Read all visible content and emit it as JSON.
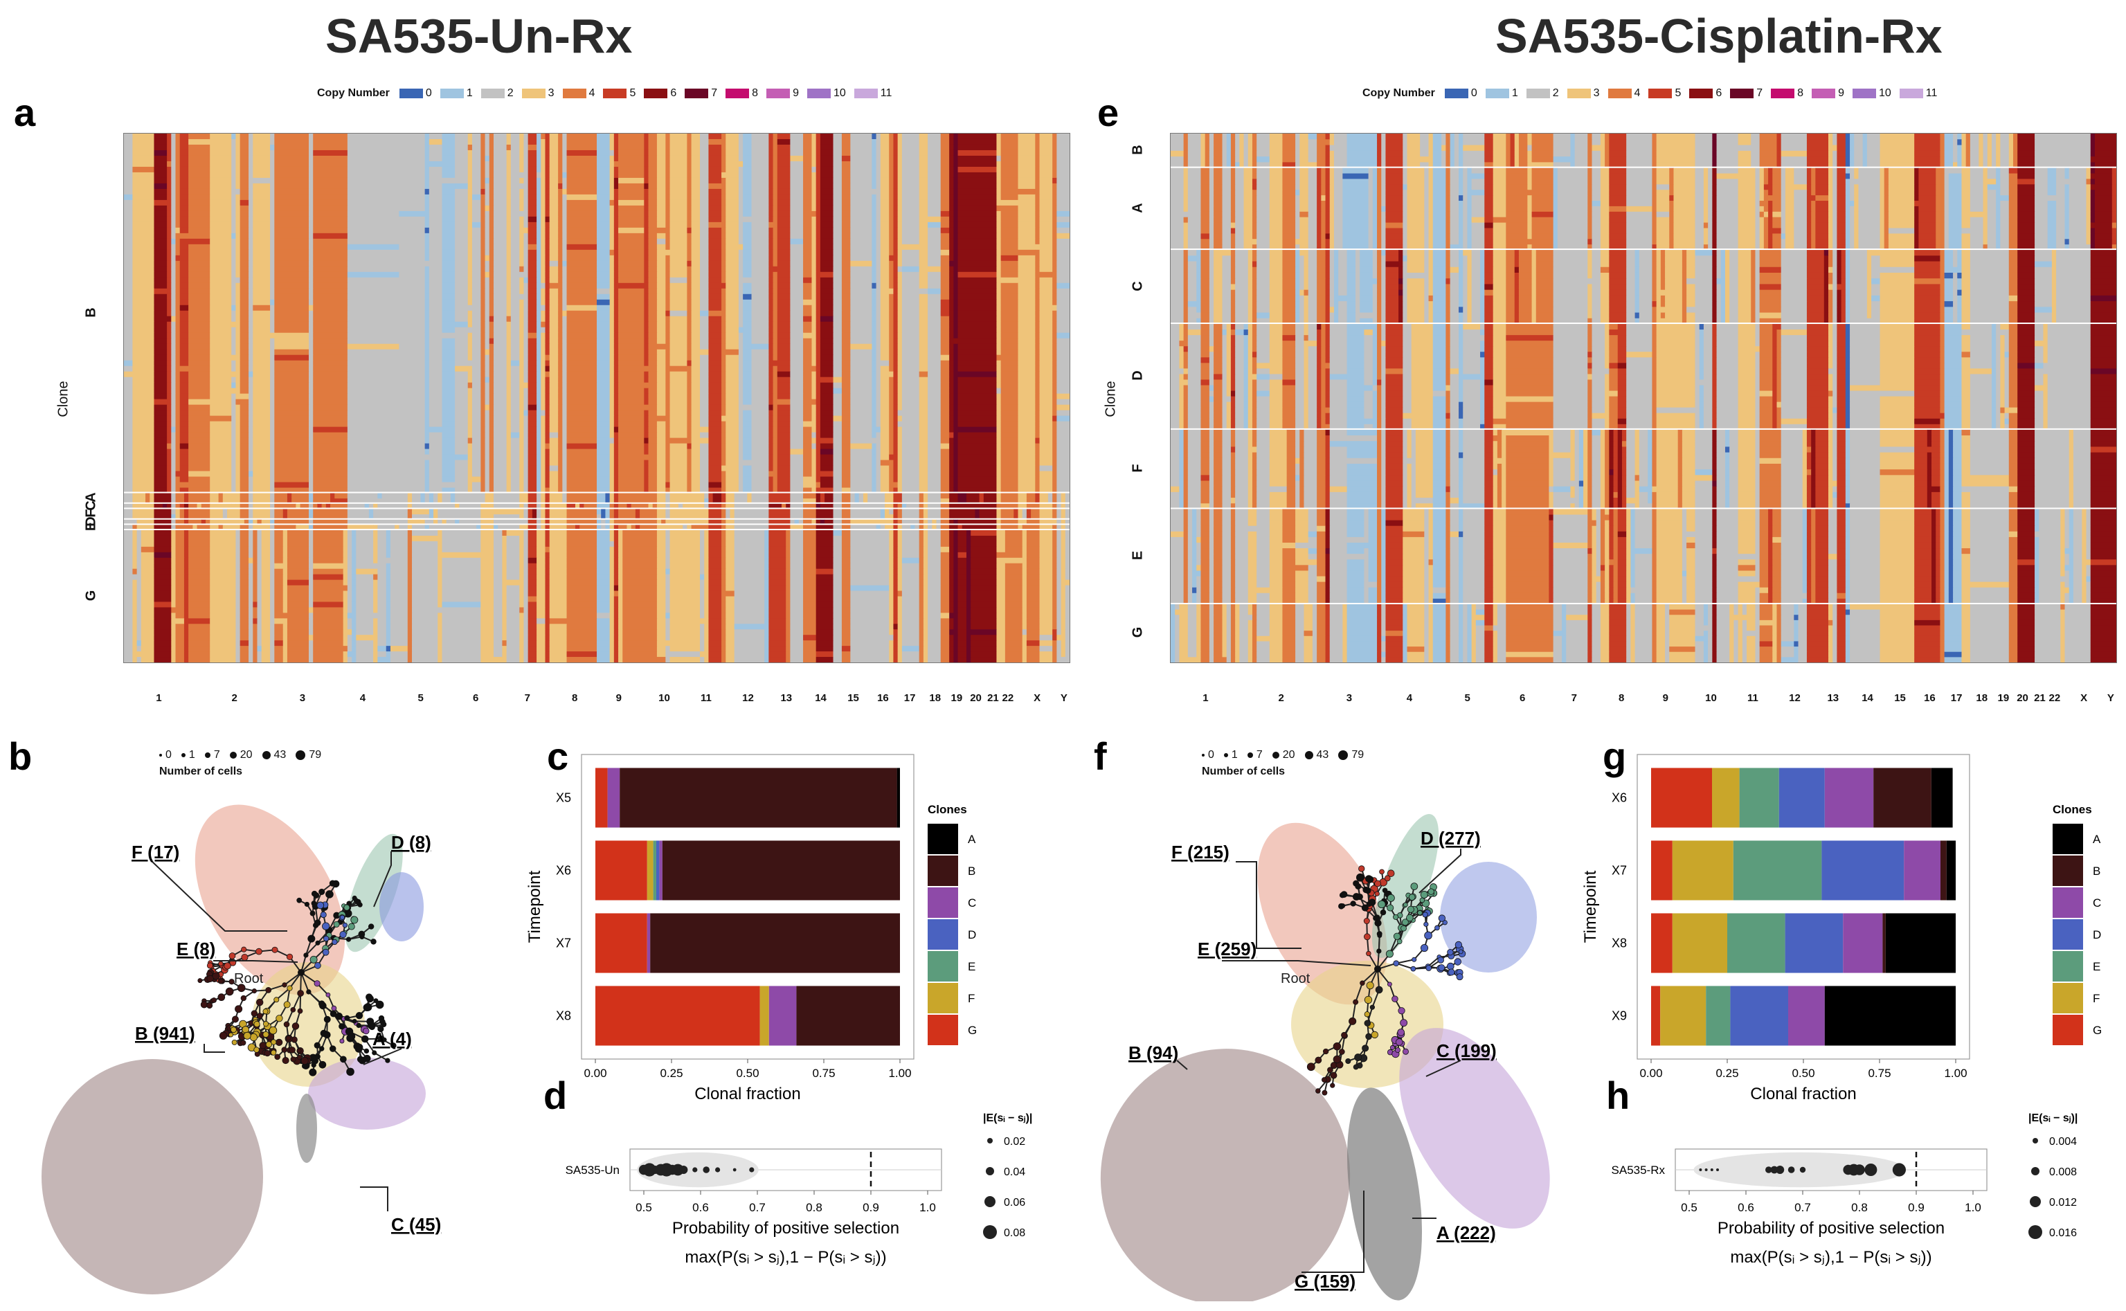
{
  "titles": {
    "left": "SA535-Un-Rx",
    "right": "SA535-Cisplatin-Rx"
  },
  "panel_labels": [
    "a",
    "b",
    "c",
    "d",
    "e",
    "f",
    "g",
    "h"
  ],
  "copy_number_legend": {
    "title": "Copy Number",
    "levels": [
      {
        "label": "0",
        "color": "#3a66b4"
      },
      {
        "label": "1",
        "color": "#9fc4e0"
      },
      {
        "label": "2",
        "color": "#c2c2c2"
      },
      {
        "label": "3",
        "color": "#efc47a"
      },
      {
        "label": "4",
        "color": "#e07a3f"
      },
      {
        "label": "5",
        "color": "#c83b24"
      },
      {
        "label": "6",
        "color": "#8a0f12"
      },
      {
        "label": "7",
        "color": "#6a0626"
      },
      {
        "label": "8",
        "color": "#c40c6e"
      },
      {
        "label": "9",
        "color": "#c45eb4"
      },
      {
        "label": "10",
        "color": "#9f73c6"
      },
      {
        "label": "11",
        "color": "#c9a8dc"
      }
    ]
  },
  "chromosomes": [
    "1",
    "2",
    "3",
    "4",
    "5",
    "6",
    "7",
    "8",
    "9",
    "10",
    "11",
    "12",
    "13",
    "14",
    "15",
    "16",
    "17",
    "18",
    "19",
    "20",
    "21",
    "22",
    "X",
    "Y"
  ],
  "heatmap_left": {
    "clone_axis_label": "Clone",
    "clones": [
      {
        "id": "B",
        "frac": 0.68
      },
      {
        "id": "A",
        "frac": 0.02
      },
      {
        "id": "C",
        "frac": 0.01
      },
      {
        "id": "F",
        "frac": 0.02
      },
      {
        "id": "D",
        "frac": 0.01
      },
      {
        "id": "E",
        "frac": 0.01
      },
      {
        "id": "G",
        "frac": 0.25
      }
    ]
  },
  "heatmap_right": {
    "clone_axis_label": "Clone",
    "clones": [
      {
        "id": "B",
        "frac": 0.065
      },
      {
        "id": "A",
        "frac": 0.155
      },
      {
        "id": "C",
        "frac": 0.14
      },
      {
        "id": "D",
        "frac": 0.2
      },
      {
        "id": "F",
        "frac": 0.15
      },
      {
        "id": "E",
        "frac": 0.18
      },
      {
        "id": "G",
        "frac": 0.11
      }
    ]
  },
  "tree_legend": {
    "title": "Number of cells",
    "sizes": [
      "0",
      "1",
      "7",
      "20",
      "43",
      "79"
    ]
  },
  "tree_left": {
    "root_label": "Root",
    "labels": [
      "F (17)",
      "D (8)",
      "E (8)",
      "B (941)",
      "A (4)",
      "C (45)"
    ]
  },
  "tree_right": {
    "root_label": "Root",
    "labels": [
      "F (215)",
      "D (277)",
      "E (259)",
      "B (94)",
      "C (199)",
      "A (222)",
      "G (159)"
    ]
  },
  "clones_legend": {
    "title": "Clones",
    "items": [
      {
        "label": "A",
        "color": "#000000"
      },
      {
        "label": "B",
        "color": "#3d1414"
      },
      {
        "label": "C",
        "color": "#8e4aa8"
      },
      {
        "label": "D",
        "color": "#4a62c0"
      },
      {
        "label": "E",
        "color": "#5c9c7c"
      },
      {
        "label": "F",
        "color": "#c9a62a"
      },
      {
        "label": "G",
        "color": "#d2321a"
      }
    ]
  },
  "chart_data": [
    {
      "type": "bar",
      "panel": "c",
      "orientation": "horizontal-stacked",
      "categories": [
        "X5",
        "X6",
        "X7",
        "X8"
      ],
      "xlabel": "Clonal fraction",
      "ylabel": "Timepoint",
      "xlim": [
        0,
        1
      ],
      "xticks": [
        "0.00",
        "0.25",
        "0.50",
        "0.75",
        "1.00"
      ],
      "legend_title": "Clones",
      "series": [
        {
          "name": "G",
          "values": [
            0.04,
            0.17,
            0.17,
            0.54
          ]
        },
        {
          "name": "F",
          "values": [
            0.0,
            0.02,
            0.0,
            0.03
          ]
        },
        {
          "name": "E",
          "values": [
            0.0,
            0.01,
            0.0,
            0.0
          ]
        },
        {
          "name": "D",
          "values": [
            0.0,
            0.01,
            0.0,
            0.0
          ]
        },
        {
          "name": "C",
          "values": [
            0.04,
            0.01,
            0.01,
            0.09
          ]
        },
        {
          "name": "B",
          "values": [
            0.91,
            0.78,
            0.82,
            0.34
          ]
        },
        {
          "name": "A",
          "values": [
            0.01,
            0.0,
            0.0,
            0.0
          ]
        }
      ]
    },
    {
      "type": "bar",
      "panel": "g",
      "orientation": "horizontal-stacked",
      "categories": [
        "X6",
        "X7",
        "X8",
        "X9"
      ],
      "xlabel": "Clonal fraction",
      "ylabel": "Timepoint",
      "xlim": [
        0,
        1
      ],
      "xticks": [
        "0.00",
        "0.25",
        "0.50",
        "0.75",
        "1.00"
      ],
      "legend_title": "Clones",
      "series": [
        {
          "name": "G",
          "values": [
            0.2,
            0.07,
            0.07,
            0.03
          ]
        },
        {
          "name": "F",
          "values": [
            0.09,
            0.2,
            0.18,
            0.15
          ]
        },
        {
          "name": "E",
          "values": [
            0.13,
            0.29,
            0.19,
            0.08
          ]
        },
        {
          "name": "D",
          "values": [
            0.15,
            0.27,
            0.19,
            0.19
          ]
        },
        {
          "name": "C",
          "values": [
            0.16,
            0.12,
            0.13,
            0.12
          ]
        },
        {
          "name": "B",
          "values": [
            0.19,
            0.02,
            0.01,
            0.0
          ]
        },
        {
          "name": "A",
          "values": [
            0.07,
            0.03,
            0.23,
            0.43
          ]
        }
      ]
    },
    {
      "type": "scatter",
      "panel": "d",
      "categories": [
        "SA535-Un"
      ],
      "xlabel": "Probability of positive selection",
      "xlabel2": "max(P(sᵢ > sⱼ),1 − P(sᵢ > sⱼ))",
      "xlim": [
        0.5,
        1.0
      ],
      "xticks": [
        "0.5",
        "0.6",
        "0.7",
        "0.8",
        "0.9",
        "1.0"
      ],
      "threshold": 0.9,
      "size_legend_title": "|E(sᵢ − sⱼ)|",
      "size_legend": [
        "0.02",
        "0.04",
        "0.06",
        "0.08"
      ],
      "x": [
        0.5,
        0.51,
        0.52,
        0.53,
        0.54,
        0.55,
        0.56,
        0.57,
        0.59,
        0.61,
        0.63,
        0.66,
        0.69
      ],
      "sizes": [
        0.06,
        0.08,
        0.05,
        0.07,
        0.08,
        0.06,
        0.07,
        0.05,
        0.03,
        0.04,
        0.03,
        0.02,
        0.03
      ]
    },
    {
      "type": "scatter",
      "panel": "h",
      "categories": [
        "SA535-Rx"
      ],
      "xlabel": "Probability of positive selection",
      "xlabel2": "max(P(sᵢ > sⱼ),1 − P(sᵢ > sⱼ))",
      "xlim": [
        0.5,
        1.0
      ],
      "xticks": [
        "0.5",
        "0.6",
        "0.7",
        "0.8",
        "0.9",
        "1.0"
      ],
      "threshold": 0.9,
      "size_legend_title": "|E(sᵢ − sⱼ)|",
      "size_legend": [
        "0.004",
        "0.008",
        "0.012",
        "0.016"
      ],
      "x": [
        0.52,
        0.53,
        0.54,
        0.55,
        0.64,
        0.65,
        0.66,
        0.68,
        0.7,
        0.78,
        0.79,
        0.8,
        0.82,
        0.87
      ],
      "sizes": [
        0.002,
        0.002,
        0.003,
        0.002,
        0.008,
        0.009,
        0.01,
        0.008,
        0.007,
        0.012,
        0.014,
        0.013,
        0.015,
        0.016
      ]
    }
  ]
}
